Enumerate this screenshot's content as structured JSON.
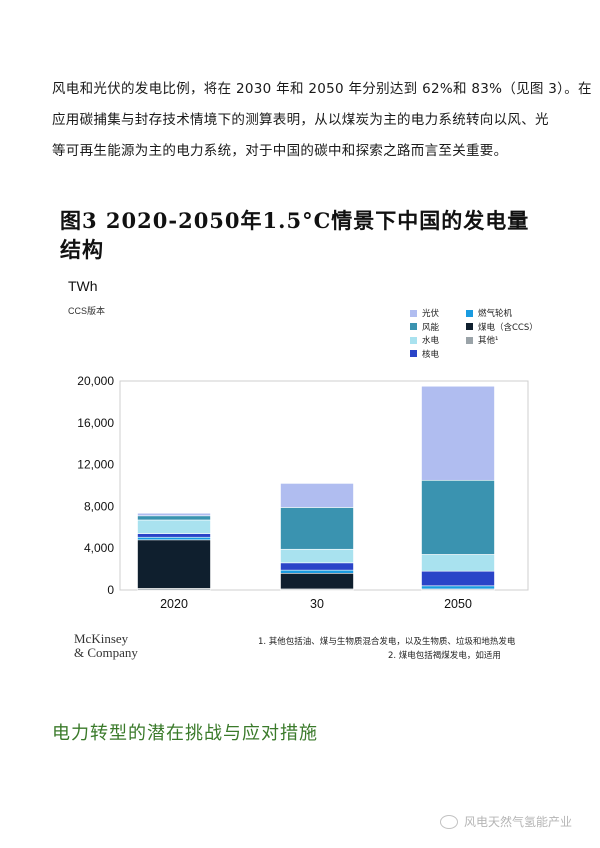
{
  "paragraph": {
    "lines": [
      "风电和光伏的发电比例，将在 2030 年和 2050 年分别达到 62%和 83%（见图 3）。在",
      "应用碳捕集与封存技术情境下的测算表明，从以煤炭为主的电力系统转向以风、光",
      "等可再生能源为主的电力系统，对于中国的碳中和探索之路而言至关重要。"
    ]
  },
  "chart": {
    "title_line1": "图3 2020-2050年1.5°C情景下中国的发电量",
    "title_line2": "结构",
    "unit": "TWh",
    "version": "CCS版本"
  },
  "chart_data": {
    "type": "bar",
    "stacked": true,
    "categories": [
      "2020",
      "30",
      "2050"
    ],
    "ylim": [
      0,
      20000
    ],
    "yticks": [
      "0",
      "4,000",
      "8,000",
      "12,000",
      "16,000",
      "20,000"
    ],
    "ytick_values": [
      0,
      4000,
      8000,
      12000,
      16000,
      20000
    ],
    "grid": false,
    "legend_position": "top-right",
    "series": [
      {
        "name": "其他¹",
        "color": "#9aa3a8",
        "values": [
          150,
          100,
          100
        ]
      },
      {
        "name": "煤电（含CCS）",
        "color": "#0f1f2e",
        "values": [
          4650,
          1500,
          0
        ]
      },
      {
        "name": "燃气轮机",
        "color": "#1a9be0",
        "values": [
          250,
          300,
          300
        ]
      },
      {
        "name": "核电",
        "color": "#2a44c8",
        "values": [
          350,
          700,
          1400
        ]
      },
      {
        "name": "水电",
        "color": "#a9e2ef",
        "values": [
          1300,
          1300,
          1600
        ]
      },
      {
        "name": "风能",
        "color": "#3a93b0",
        "values": [
          400,
          4000,
          7100
        ]
      },
      {
        "name": "光伏",
        "color": "#b0bdf0",
        "values": [
          250,
          2300,
          9000
        ]
      }
    ],
    "legend_order": [
      "光伏",
      "燃气轮机",
      "风能",
      "煤电（含CCS）",
      "水电",
      "其他¹",
      "核电"
    ]
  },
  "footer": {
    "logo_line1": "McKinsey",
    "logo_line2": "& Company",
    "note1": "1. 其他包括油、煤与生物质混合发电，以及生物质、垃圾和地热发电",
    "note2": "2. 煤电包括褐煤发电，如适用"
  },
  "section_heading": "电力转型的潜在挑战与应对措施",
  "watermark": "风电天然气氢能产业"
}
